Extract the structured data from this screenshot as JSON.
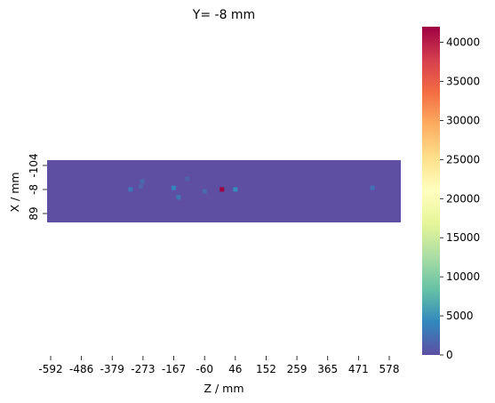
{
  "chart_data": {
    "type": "heatmap",
    "title": "Y= -8 mm",
    "xlabel": "Z / mm",
    "ylabel": "X / mm",
    "x_tick_labels": [
      "-592",
      "-486",
      "-379",
      "-273",
      "-167",
      "-60",
      "46",
      "152",
      "259",
      "365",
      "471",
      "578"
    ],
    "y_tick_labels": [
      "-104",
      "-8",
      "89"
    ],
    "x_range": [
      -592,
      578
    ],
    "y_range": [
      -104,
      89
    ],
    "colormap": "Spectral_r",
    "colorbar": {
      "min": 0,
      "max": 42000,
      "tick_labels": [
        "0",
        "5000",
        "10000",
        "15000",
        "20000",
        "25000",
        "30000",
        "35000",
        "40000"
      ],
      "tick_values": [
        0,
        5000,
        10000,
        15000,
        20000,
        25000,
        30000,
        35000,
        40000
      ]
    },
    "background_value": 0,
    "hotspots": [
      {
        "z": 0,
        "x": -8,
        "value": 42000
      },
      {
        "z": 46,
        "x": -8,
        "value": 4500
      },
      {
        "z": -167,
        "x": -14,
        "value": 4000
      },
      {
        "z": -316,
        "x": -8,
        "value": 3000
      },
      {
        "z": -150,
        "x": 24,
        "value": 3000
      },
      {
        "z": 520,
        "x": -14,
        "value": 2500
      },
      {
        "z": -275,
        "x": -40,
        "value": 2000
      },
      {
        "z": -60,
        "x": 0,
        "value": 2000
      },
      {
        "z": -120,
        "x": -50,
        "value": 1500
      },
      {
        "z": -280,
        "x": -20,
        "value": 1500
      }
    ]
  }
}
